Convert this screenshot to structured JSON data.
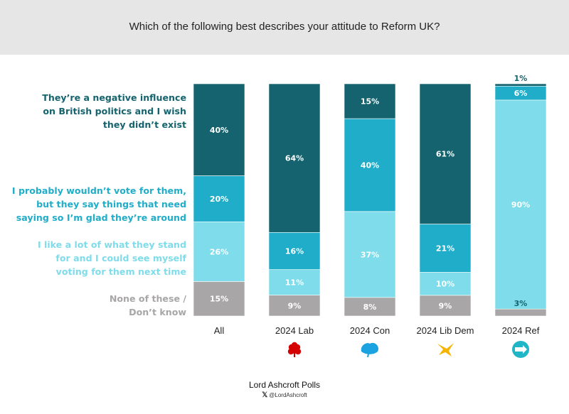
{
  "header": {
    "title": "Which of the following best describes your attitude to Reform UK?"
  },
  "legend": [
    {
      "label_lines": [
        "They’re a negative influence",
        "on British politics and I wish",
        "they didn’t exist"
      ],
      "color": "#14636e"
    },
    {
      "label_lines": [
        "I probably wouldn’t vote for them,",
        "but they say things that need",
        "saying so I’m glad they’re around"
      ],
      "color": "#20adc9"
    },
    {
      "label_lines": [
        "I like a lot of what they stand",
        "for and I could see myself",
        "voting for them next time"
      ],
      "color": "#7fdcea"
    },
    {
      "label_lines": [
        "None of these /",
        "Don’t know"
      ],
      "color": "#a8a6a6"
    }
  ],
  "chart_data": {
    "type": "bar",
    "stacked": true,
    "categories": [
      "All",
      "2024 Lab",
      "2024 Con",
      "2024 Lib Dem",
      "2024 Ref"
    ],
    "series": [
      {
        "name": "None of these / Don’t know",
        "values": [
          15,
          9,
          8,
          9,
          3
        ],
        "color": "#a8a6a6"
      },
      {
        "name": "I like a lot of what they stand for and I could see myself voting for them next time",
        "values": [
          26,
          11,
          37,
          10,
          90
        ],
        "color": "#7fdcea"
      },
      {
        "name": "I probably wouldn’t vote for them, but they say things that need saying so I’m glad they’re around",
        "values": [
          20,
          16,
          40,
          21,
          6
        ],
        "color": "#20adc9"
      },
      {
        "name": "They’re a negative influence on British politics and I wish they didn’t exist",
        "values": [
          40,
          64,
          15,
          61,
          1
        ],
        "color": "#14636e"
      }
    ],
    "data_labels": [
      [
        "15%",
        "9%",
        "8%",
        "9%",
        "3%"
      ],
      [
        "26%",
        "11%",
        "37%",
        "10%",
        "90%"
      ],
      [
        "20%",
        "16%",
        "40%",
        "21%",
        "6%"
      ],
      [
        "40%",
        "64%",
        "15%",
        "61%",
        "1%"
      ]
    ],
    "ylim": [
      0,
      100
    ],
    "grid": false,
    "legend_position": "left"
  },
  "party_icons": [
    {
      "name": "labour-rose-icon",
      "color": "#d50000"
    },
    {
      "name": "conservative-tree-icon",
      "color": "#1aa3e0"
    },
    {
      "name": "lib-dem-bird-icon",
      "color": "#f5b400"
    },
    {
      "name": "reform-uk-logo-icon",
      "color": "#20b6c8"
    }
  ],
  "footer": {
    "title": "Lord Ashcroft Polls",
    "handle": "@LordAshcroft",
    "x_glyph": "𝕏"
  }
}
